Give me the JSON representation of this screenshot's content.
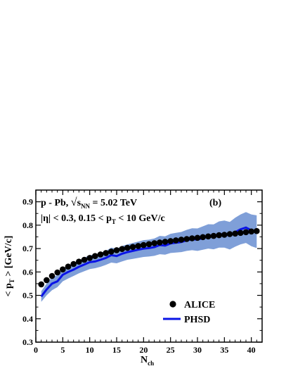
{
  "chart_data": {
    "type": "line",
    "title": "",
    "xlabel_main": "N",
    "xlabel_sub": "ch",
    "ylabel_main": "< p",
    "ylabel_sub": "T",
    "ylabel_tail": " >  [GeV/c]",
    "xlim": [
      0,
      42
    ],
    "ylim": [
      0.3,
      0.95
    ],
    "x_ticks": [
      0,
      5,
      10,
      15,
      20,
      25,
      30,
      35,
      40
    ],
    "x_tick_labels": [
      "0",
      "5",
      "10",
      "15",
      "20",
      "25",
      "30",
      "35",
      "40"
    ],
    "y_ticks": [
      0.3,
      0.4,
      0.5,
      0.6,
      0.7,
      0.8,
      0.9
    ],
    "y_tick_labels": [
      "0.3",
      "0.4",
      "0.5",
      "0.6",
      "0.7",
      "0.8",
      "0.9"
    ],
    "grid": false,
    "annotations": {
      "line1_prefix": "p - Pb,  ",
      "line1_sqrt": "√",
      "line1_s": "s",
      "line1_nn": "NN",
      "line1_suffix": " = 5.02 TeV",
      "line2_prefix": "|η| < 0.3,  0.15 < p",
      "line2_sub": "T",
      "line2_suffix": " < 10 GeV/c",
      "panel_label": "(b)"
    },
    "legend": {
      "position": "bottom-right",
      "alice": "ALICE",
      "phsd": "PHSD"
    },
    "colors": {
      "alice": "#000000",
      "phsd": "#0a14e6",
      "band": "#7f9fd8"
    },
    "alice": {
      "x": [
        1,
        2,
        3,
        4,
        5,
        6,
        7,
        8,
        9,
        10,
        11,
        12,
        13,
        14,
        15,
        16,
        17,
        18,
        19,
        20,
        21,
        22,
        23,
        24,
        25,
        26,
        27,
        28,
        29,
        30,
        31,
        32,
        33,
        34,
        35,
        36,
        37,
        38,
        39,
        40,
        41
      ],
      "y": [
        0.547,
        0.565,
        0.583,
        0.598,
        0.611,
        0.623,
        0.634,
        0.644,
        0.652,
        0.66,
        0.668,
        0.675,
        0.681,
        0.687,
        0.693,
        0.698,
        0.703,
        0.707,
        0.711,
        0.715,
        0.719,
        0.723,
        0.726,
        0.729,
        0.732,
        0.735,
        0.738,
        0.741,
        0.744,
        0.746,
        0.749,
        0.752,
        0.754,
        0.757,
        0.759,
        0.762,
        0.764,
        0.767,
        0.77,
        0.773,
        0.775
      ]
    },
    "phsd": {
      "x": [
        1,
        2,
        3,
        4,
        5,
        6,
        7,
        8,
        9,
        10,
        11,
        12,
        13,
        14,
        15,
        16,
        17,
        18,
        19,
        20,
        21,
        22,
        23,
        24,
        25,
        26,
        27,
        28,
        29,
        30,
        31,
        32,
        33,
        34,
        35,
        36,
        37,
        38,
        39,
        40,
        41
      ],
      "y": [
        0.495,
        0.525,
        0.55,
        0.56,
        0.588,
        0.6,
        0.61,
        0.622,
        0.632,
        0.642,
        0.645,
        0.652,
        0.66,
        0.672,
        0.668,
        0.678,
        0.685,
        0.69,
        0.695,
        0.7,
        0.702,
        0.706,
        0.715,
        0.713,
        0.722,
        0.725,
        0.728,
        0.735,
        0.74,
        0.738,
        0.745,
        0.752,
        0.75,
        0.76,
        0.762,
        0.755,
        0.77,
        0.782,
        0.79,
        0.778,
        0.772
      ],
      "band_low": [
        0.472,
        0.5,
        0.522,
        0.535,
        0.56,
        0.572,
        0.583,
        0.594,
        0.603,
        0.612,
        0.616,
        0.622,
        0.63,
        0.64,
        0.637,
        0.645,
        0.652,
        0.656,
        0.66,
        0.664,
        0.666,
        0.669,
        0.676,
        0.674,
        0.681,
        0.683,
        0.685,
        0.69,
        0.693,
        0.69,
        0.695,
        0.7,
        0.697,
        0.704,
        0.704,
        0.696,
        0.708,
        0.718,
        0.724,
        0.71,
        0.702
      ],
      "band_high": [
        0.518,
        0.55,
        0.578,
        0.585,
        0.616,
        0.628,
        0.637,
        0.65,
        0.661,
        0.672,
        0.674,
        0.682,
        0.69,
        0.704,
        0.699,
        0.711,
        0.718,
        0.724,
        0.73,
        0.736,
        0.738,
        0.743,
        0.754,
        0.752,
        0.763,
        0.767,
        0.771,
        0.78,
        0.787,
        0.786,
        0.795,
        0.804,
        0.803,
        0.816,
        0.82,
        0.814,
        0.832,
        0.846,
        0.856,
        0.846,
        0.842
      ]
    }
  }
}
